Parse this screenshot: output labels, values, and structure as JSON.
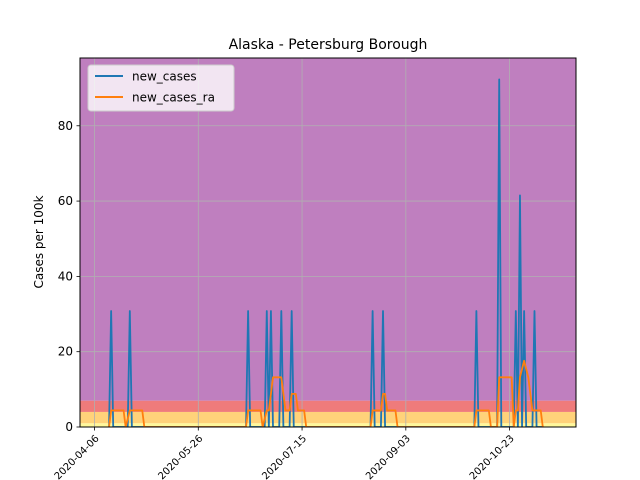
{
  "chart_data": {
    "type": "line",
    "title": "Alaska - Petersburg Borough",
    "xlabel": "",
    "ylabel": "Cases per 100k",
    "x_start": "2020-03-30",
    "x_end": "2020-11-24",
    "ylim": [
      0,
      98
    ],
    "yticks": [
      0,
      20,
      40,
      60,
      80
    ],
    "xticks": [
      {
        "date": "2020-04-06",
        "label": "2020-04-06"
      },
      {
        "date": "2020-05-26",
        "label": "2020-05-26"
      },
      {
        "date": "2020-07-15",
        "label": "2020-07-15"
      },
      {
        "date": "2020-09-03",
        "label": "2020-09-03"
      },
      {
        "date": "2020-10-23",
        "label": "2020-10-23"
      }
    ],
    "grid": true,
    "legend_position": "top-left",
    "risk_bands": [
      {
        "from": 0,
        "to": 1,
        "color": "#fff89a"
      },
      {
        "from": 1,
        "to": 4,
        "color": "#ffd27a"
      },
      {
        "from": 4,
        "to": 7,
        "color": "#ef7b7b"
      },
      {
        "from": 7,
        "to": 98,
        "color": "#bf7fbf"
      }
    ],
    "series": [
      {
        "name": "new_cases",
        "color": "#1f77b4",
        "points": [
          [
            "2020-04-13",
            0
          ],
          [
            "2020-04-14",
            30.8
          ],
          [
            "2020-04-15",
            0
          ],
          [
            "2020-04-22",
            0
          ],
          [
            "2020-04-23",
            30.8
          ],
          [
            "2020-04-24",
            0
          ],
          [
            "2020-06-18",
            0
          ],
          [
            "2020-06-19",
            30.8
          ],
          [
            "2020-06-20",
            0
          ],
          [
            "2020-06-27",
            0
          ],
          [
            "2020-06-28",
            30.8
          ],
          [
            "2020-06-29",
            0
          ],
          [
            "2020-06-30",
            30.8
          ],
          [
            "2020-07-01",
            0
          ],
          [
            "2020-07-04",
            0
          ],
          [
            "2020-07-05",
            30.8
          ],
          [
            "2020-07-06",
            0
          ],
          [
            "2020-07-09",
            0
          ],
          [
            "2020-07-10",
            30.8
          ],
          [
            "2020-07-11",
            0
          ],
          [
            "2020-08-17",
            0
          ],
          [
            "2020-08-18",
            30.8
          ],
          [
            "2020-08-19",
            0
          ],
          [
            "2020-08-22",
            0
          ],
          [
            "2020-08-23",
            30.8
          ],
          [
            "2020-08-24",
            0
          ],
          [
            "2020-10-06",
            0
          ],
          [
            "2020-10-07",
            30.8
          ],
          [
            "2020-10-08",
            0
          ],
          [
            "2020-10-17",
            0
          ],
          [
            "2020-10-18",
            92.3
          ],
          [
            "2020-10-19",
            0
          ],
          [
            "2020-10-25",
            0
          ],
          [
            "2020-10-26",
            30.8
          ],
          [
            "2020-10-27",
            0
          ],
          [
            "2020-10-28",
            61.5
          ],
          [
            "2020-10-29",
            0
          ],
          [
            "2020-10-30",
            30.8
          ],
          [
            "2020-10-31",
            0
          ],
          [
            "2020-11-03",
            0
          ],
          [
            "2020-11-04",
            30.8
          ],
          [
            "2020-11-05",
            0
          ],
          [
            "2020-11-08",
            0
          ]
        ]
      },
      {
        "name": "new_cases_ra",
        "color": "#ff7f0e",
        "points": [
          [
            "2020-04-13",
            0
          ],
          [
            "2020-04-14",
            4.4
          ],
          [
            "2020-04-20",
            4.4
          ],
          [
            "2020-04-21",
            0
          ],
          [
            "2020-04-23",
            4.4
          ],
          [
            "2020-04-29",
            4.4
          ],
          [
            "2020-04-30",
            0
          ],
          [
            "2020-06-18",
            0
          ],
          [
            "2020-06-19",
            4.4
          ],
          [
            "2020-06-25",
            4.4
          ],
          [
            "2020-06-26",
            0
          ],
          [
            "2020-06-28",
            4.4
          ],
          [
            "2020-06-29",
            4.4
          ],
          [
            "2020-06-30",
            8.8
          ],
          [
            "2020-07-01",
            13.2
          ],
          [
            "2020-07-05",
            13.2
          ],
          [
            "2020-07-06",
            8.8
          ],
          [
            "2020-07-07",
            4.4
          ],
          [
            "2020-07-09",
            4.4
          ],
          [
            "2020-07-10",
            8.8
          ],
          [
            "2020-07-12",
            8.8
          ],
          [
            "2020-07-13",
            4.4
          ],
          [
            "2020-07-16",
            4.4
          ],
          [
            "2020-07-17",
            0
          ],
          [
            "2020-08-17",
            0
          ],
          [
            "2020-08-18",
            4.4
          ],
          [
            "2020-08-22",
            4.4
          ],
          [
            "2020-08-23",
            8.8
          ],
          [
            "2020-08-24",
            8.8
          ],
          [
            "2020-08-25",
            4.4
          ],
          [
            "2020-08-29",
            4.4
          ],
          [
            "2020-08-30",
            0
          ],
          [
            "2020-10-06",
            0
          ],
          [
            "2020-10-07",
            4.4
          ],
          [
            "2020-10-13",
            4.4
          ],
          [
            "2020-10-14",
            0
          ],
          [
            "2020-10-17",
            0
          ],
          [
            "2020-10-18",
            13.2
          ],
          [
            "2020-10-24",
            13.2
          ],
          [
            "2020-10-25",
            0
          ],
          [
            "2020-10-26",
            4.4
          ],
          [
            "2020-10-27",
            4.4
          ],
          [
            "2020-10-28",
            13.2
          ],
          [
            "2020-10-30",
            17.6
          ],
          [
            "2020-11-01",
            13.2
          ],
          [
            "2020-11-02",
            8.8
          ],
          [
            "2020-11-03",
            4.4
          ],
          [
            "2020-11-07",
            4.4
          ],
          [
            "2020-11-08",
            0
          ]
        ]
      }
    ]
  }
}
